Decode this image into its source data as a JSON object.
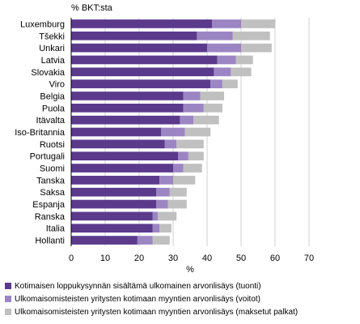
{
  "chart_data": {
    "type": "bar",
    "orientation": "horizontal",
    "stacked": true,
    "unit_label": "% BKT:sta",
    "xlabel": "%",
    "xlim": [
      0,
      70
    ],
    "xticks": [
      0,
      10,
      20,
      30,
      40,
      50,
      60,
      70
    ],
    "grid": true,
    "legend_position": "bottom",
    "categories": [
      "Luxemburg",
      "Tšekki",
      "Unkari",
      "Latvia",
      "Slovakia",
      "Viro",
      "Belgia",
      "Puola",
      "Itävalta",
      "Iso-Britannia",
      "Ruotsi",
      "Portugali",
      "Suomi",
      "Tanska",
      "Saksa",
      "Espanja",
      "Ranska",
      "Italia",
      "Hollanti"
    ],
    "series": [
      {
        "name": "Kotimaisen loppukysynnän sisältämä ulkomainen arvonlisäys (tuonti)",
        "color": "#5b3a8c",
        "values": [
          41.5,
          37,
          40,
          43,
          42,
          41,
          33,
          33,
          32,
          26.5,
          27.5,
          31.5,
          30,
          26,
          25,
          25,
          24,
          24,
          19.5
        ]
      },
      {
        "name": "Ulkomaisomisteisten yritysten kotimaan myyntien arvonlisäys (voitot)",
        "color": "#9b86c3",
        "values": [
          8.5,
          10.5,
          10,
          5.5,
          5,
          3.5,
          5,
          6,
          4,
          7,
          3.5,
          3,
          3,
          4,
          4,
          3.5,
          1.5,
          2,
          4.5
        ]
      },
      {
        "name": "Ulkomaisomisteisten yritysten kotimaan myyntien arvonlisäys (maksetut palkat)",
        "color": "#c0c0c0",
        "values": [
          10,
          11,
          9,
          5,
          6,
          4.5,
          7,
          5.5,
          7.5,
          7.5,
          8,
          4.5,
          5.5,
          6.5,
          5,
          5.5,
          5.5,
          3.5,
          5
        ]
      }
    ]
  }
}
